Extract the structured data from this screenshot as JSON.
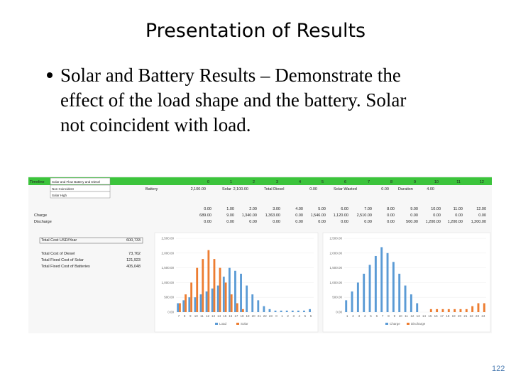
{
  "slide": {
    "title": "Presentation of Results",
    "bullet_lines": [
      "Solar and Battery Results – Demonstrate the",
      "effect of the load shape and the battery.  Solar",
      "not coincident with load."
    ],
    "page_number": "122"
  },
  "spreadsheet": {
    "header": [
      "Timeline",
      "Solar and Flow Battery and Diesel",
      "0",
      "1",
      "2",
      "3",
      "4",
      "5",
      "6",
      "7",
      "8",
      "9",
      "10",
      "11",
      "12"
    ],
    "dropdowns": [
      "Non Coincident",
      "Solar High"
    ],
    "battery_row": [
      "Battery",
      "2,100.00",
      "Solar",
      "2,100.00",
      "Total Diesel",
      "0.00",
      "Solar Wasted",
      "0.00",
      "Duration",
      "4.00"
    ],
    "hours_row": [
      "0.00",
      "1.00",
      "2.00",
      "3.00",
      "4.00",
      "5.00",
      "6.00",
      "7.00",
      "8.00",
      "9.00",
      "10.00",
      "11.00",
      "12.00"
    ],
    "charge_row": [
      "Charge",
      "689.00",
      "9.00",
      "1,340.00",
      "1,363.00",
      "0.00",
      "1,546.00",
      "1,120.00",
      "2,510.00",
      "0.00",
      "0.00",
      "0.00",
      "0.00",
      "0.00"
    ],
    "discharge_row": [
      "Discharge",
      "0.00",
      "0.00",
      "0.00",
      "0.00",
      "0.00",
      "0.00",
      "0.00",
      "0.00",
      "0.00",
      "500.00",
      "1,200.00",
      "1,200.00",
      "1,200.00"
    ],
    "costs": [
      [
        "Total Cost USD/Year",
        "600,733"
      ],
      [
        "Total Cost of Diesel",
        "73,762"
      ],
      [
        "Total Fixed Cost of Solar",
        "121,923"
      ],
      [
        "Total Fixed Cost of Batteries",
        "405,048"
      ]
    ]
  },
  "chart_data": [
    {
      "type": "bar",
      "categories": [
        "7",
        "8",
        "9",
        "10",
        "11",
        "12",
        "13",
        "14",
        "15",
        "16",
        "17",
        "18",
        "19",
        "20",
        "21",
        "22",
        "23",
        "0",
        "1",
        "2",
        "3",
        "4",
        "5",
        "6"
      ],
      "series": [
        {
          "name": "Load",
          "color": "#5b9bd5",
          "values": [
            300,
            400,
            500,
            500,
            600,
            700,
            800,
            900,
            1200,
            1500,
            1400,
            1300,
            900,
            600,
            400,
            200,
            100,
            50,
            50,
            50,
            50,
            50,
            50,
            100
          ]
        },
        {
          "name": "Solar",
          "color": "#ed7d31",
          "values": [
            300,
            600,
            1000,
            1500,
            1800,
            2100,
            1800,
            1500,
            1000,
            600,
            300,
            100,
            0,
            0,
            0,
            0,
            0,
            0,
            0,
            0,
            0,
            0,
            0,
            0
          ]
        }
      ],
      "ylim": [
        0,
        2500
      ],
      "yticks": [
        {
          "value": 0,
          "label": "0.00"
        },
        {
          "value": 500,
          "label": "500.00"
        },
        {
          "value": 1000,
          "label": "1,000.00"
        },
        {
          "value": 1500,
          "label": "1,500.00"
        },
        {
          "value": 2000,
          "label": "2,000.00"
        },
        {
          "value": 2500,
          "label": "2,500.00"
        }
      ]
    },
    {
      "type": "bar",
      "categories": [
        "1",
        "2",
        "3",
        "4",
        "5",
        "6",
        "7",
        "8",
        "9",
        "10",
        "11",
        "12",
        "13",
        "14",
        "15",
        "16",
        "17",
        "18",
        "19",
        "20",
        "21",
        "22",
        "23",
        "24"
      ],
      "series": [
        {
          "name": "Charge",
          "color": "#5b9bd5",
          "values": [
            400,
            700,
            1000,
            1300,
            1600,
            1900,
            2200,
            2000,
            1700,
            1300,
            900,
            600,
            300,
            0,
            0,
            0,
            0,
            0,
            0,
            0,
            0,
            0,
            0,
            0
          ]
        },
        {
          "name": "Discharge",
          "color": "#ed7d31",
          "values": [
            0,
            0,
            0,
            0,
            0,
            0,
            0,
            0,
            0,
            0,
            0,
            0,
            0,
            0,
            100,
            100,
            100,
            100,
            100,
            100,
            100,
            200,
            300,
            300
          ]
        }
      ],
      "ylim": [
        0,
        2500
      ],
      "yticks": [
        {
          "value": 0,
          "label": "0.00"
        },
        {
          "value": 500,
          "label": "500.00"
        },
        {
          "value": 1000,
          "label": "1,000.00"
        },
        {
          "value": 1500,
          "label": "1,500.00"
        },
        {
          "value": 2000,
          "label": "2,000.00"
        },
        {
          "value": 2500,
          "label": "2,500.00"
        }
      ]
    }
  ]
}
